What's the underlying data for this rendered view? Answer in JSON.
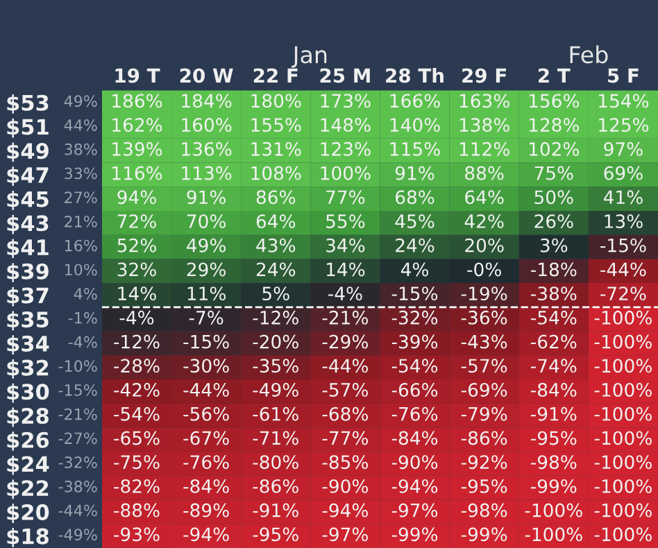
{
  "chart_data": {
    "type": "heatmap",
    "categories": [
      "19 T",
      "20 W",
      "22 F",
      "25 M",
      "28 Th",
      "29 F",
      "2 T",
      "5 F"
    ],
    "y_categories": [
      "$53",
      "$51",
      "$49",
      "$47",
      "$45",
      "$43",
      "$41",
      "$39",
      "$37",
      "$35",
      "$34",
      "$32",
      "$30",
      "$28",
      "$26",
      "$24",
      "$22",
      "$20",
      "$18"
    ],
    "y2_categories": [
      "49%",
      "44%",
      "38%",
      "33%",
      "27%",
      "21%",
      "16%",
      "10%",
      "4%",
      "-1%",
      "-4%",
      "-10%",
      "-15%",
      "-21%",
      "-27%",
      "-32%",
      "-38%",
      "-44%",
      "-49%"
    ],
    "cells": [
      [
        186,
        184,
        180,
        173,
        166,
        163,
        156,
        154
      ],
      [
        162,
        160,
        155,
        148,
        140,
        138,
        128,
        125
      ],
      [
        139,
        136,
        131,
        123,
        115,
        112,
        102,
        97
      ],
      [
        116,
        113,
        108,
        100,
        91,
        88,
        75,
        69
      ],
      [
        94,
        91,
        86,
        77,
        68,
        64,
        50,
        41
      ],
      [
        72,
        70,
        64,
        55,
        45,
        42,
        26,
        13
      ],
      [
        52,
        49,
        43,
        34,
        24,
        20,
        3,
        -15
      ],
      [
        32,
        29,
        24,
        14,
        4,
        0,
        -18,
        -44
      ],
      [
        14,
        11,
        5,
        -4,
        -15,
        -19,
        -38,
        -72
      ],
      [
        -4,
        -7,
        -12,
        -21,
        -32,
        -36,
        -54,
        -100
      ],
      [
        -12,
        -15,
        -20,
        -29,
        -39,
        -43,
        -62,
        -100
      ],
      [
        -28,
        -30,
        -35,
        -44,
        -54,
        -57,
        -74,
        -100
      ],
      [
        -42,
        -44,
        -49,
        -57,
        -66,
        -69,
        -84,
        -100
      ],
      [
        -54,
        -56,
        -61,
        -68,
        -76,
        -79,
        -91,
        -100
      ],
      [
        -65,
        -67,
        -71,
        -77,
        -84,
        -86,
        -95,
        -100
      ],
      [
        -75,
        -76,
        -80,
        -85,
        -90,
        -92,
        -98,
        -100
      ],
      [
        -82,
        -84,
        -86,
        -90,
        -94,
        -95,
        -99,
        -100
      ],
      [
        -88,
        -89,
        -91,
        -94,
        -97,
        -98,
        -100,
        -100
      ],
      [
        -93,
        -94,
        -95,
        -97,
        -99,
        -99,
        -100,
        -100
      ]
    ],
    "cell_labels": [
      [
        "186%",
        "184%",
        "180%",
        "173%",
        "166%",
        "163%",
        "156%",
        "154%"
      ],
      [
        "162%",
        "160%",
        "155%",
        "148%",
        "140%",
        "138%",
        "128%",
        "125%"
      ],
      [
        "139%",
        "136%",
        "131%",
        "123%",
        "115%",
        "112%",
        "102%",
        "97%"
      ],
      [
        "116%",
        "113%",
        "108%",
        "100%",
        "91%",
        "88%",
        "75%",
        "69%"
      ],
      [
        "94%",
        "91%",
        "86%",
        "77%",
        "68%",
        "64%",
        "50%",
        "41%"
      ],
      [
        "72%",
        "70%",
        "64%",
        "55%",
        "45%",
        "42%",
        "26%",
        "13%"
      ],
      [
        "52%",
        "49%",
        "43%",
        "34%",
        "24%",
        "20%",
        "3%",
        "-15%"
      ],
      [
        "32%",
        "29%",
        "24%",
        "14%",
        "4%",
        "-0%",
        "-18%",
        "-44%"
      ],
      [
        "14%",
        "11%",
        "5%",
        "-4%",
        "-15%",
        "-19%",
        "-38%",
        "-72%"
      ],
      [
        "-4%",
        "-7%",
        "-12%",
        "-21%",
        "-32%",
        "-36%",
        "-54%",
        "-100%"
      ],
      [
        "-12%",
        "-15%",
        "-20%",
        "-29%",
        "-39%",
        "-43%",
        "-62%",
        "-100%"
      ],
      [
        "-28%",
        "-30%",
        "-35%",
        "-44%",
        "-54%",
        "-57%",
        "-74%",
        "-100%"
      ],
      [
        "-42%",
        "-44%",
        "-49%",
        "-57%",
        "-66%",
        "-69%",
        "-84%",
        "-100%"
      ],
      [
        "-54%",
        "-56%",
        "-61%",
        "-68%",
        "-76%",
        "-79%",
        "-91%",
        "-100%"
      ],
      [
        "-65%",
        "-67%",
        "-71%",
        "-77%",
        "-84%",
        "-86%",
        "-95%",
        "-100%"
      ],
      [
        "-75%",
        "-76%",
        "-80%",
        "-85%",
        "-90%",
        "-92%",
        "-98%",
        "-100%"
      ],
      [
        "-82%",
        "-84%",
        "-86%",
        "-90%",
        "-94%",
        "-95%",
        "-99%",
        "-100%"
      ],
      [
        "-88%",
        "-89%",
        "-91%",
        "-94%",
        "-97%",
        "-98%",
        "-100%",
        "-100%"
      ],
      [
        "-93%",
        "-94%",
        "-95%",
        "-97%",
        "-99%",
        "-99%",
        "-100%",
        "-100%"
      ]
    ],
    "annotations": [
      "Jan",
      "Feb"
    ]
  }
}
